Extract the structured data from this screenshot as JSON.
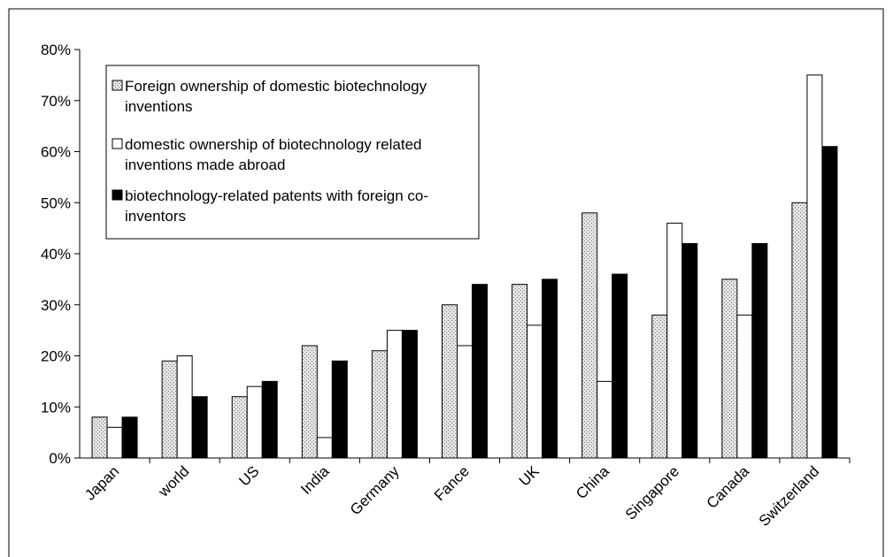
{
  "chart_data": {
    "type": "bar",
    "categories": [
      "Japan",
      "world",
      "US",
      "India",
      "Germany",
      "Fance",
      "UK",
      "China",
      "Singapore",
      "Canada",
      "Switzerland"
    ],
    "series": [
      {
        "name": "Foreign ownership of domestic biotechnology inventions",
        "color": "#e4e4e4",
        "values": [
          8,
          19,
          12,
          22,
          21,
          30,
          34,
          48,
          28,
          35,
          50
        ]
      },
      {
        "name": "domestic ownership of biotechnology related inventions made abroad",
        "color": "#ffffff",
        "values": [
          6,
          20,
          14,
          4,
          25,
          22,
          26,
          15,
          46,
          28,
          75
        ]
      },
      {
        "name": "biotechnology-related patents with foreign co-inventors",
        "color": "#000000",
        "values": [
          8,
          12,
          15,
          19,
          25,
          34,
          35,
          36,
          42,
          42,
          61
        ]
      }
    ],
    "ylim": [
      0,
      80
    ],
    "yticks": [
      {
        "value": 0,
        "label": "0%"
      },
      {
        "value": 10,
        "label": "10%"
      },
      {
        "value": 20,
        "label": "20%"
      },
      {
        "value": 30,
        "label": "30%"
      },
      {
        "value": 40,
        "label": "40%"
      },
      {
        "value": 50,
        "label": "50%"
      },
      {
        "value": 60,
        "label": "60%"
      },
      {
        "value": 70,
        "label": "70%"
      },
      {
        "value": 80,
        "label": "80%"
      }
    ]
  }
}
